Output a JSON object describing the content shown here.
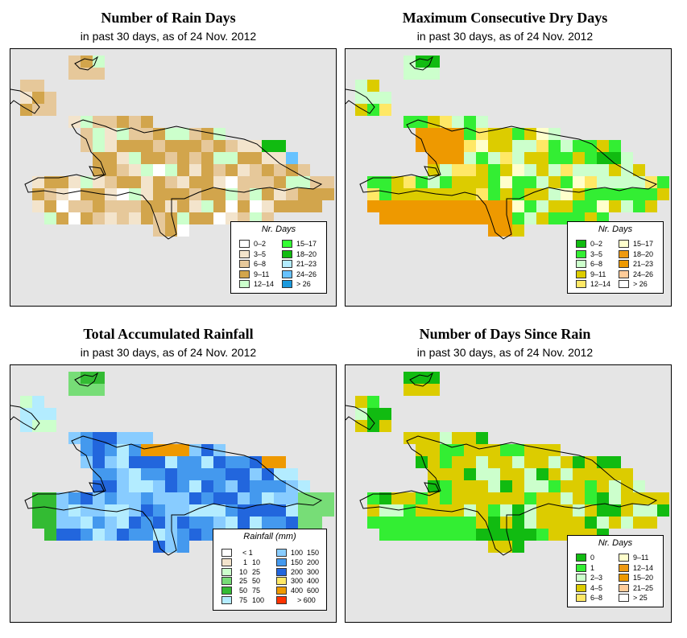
{
  "panels": [
    {
      "id": "rain_days",
      "title": "Number of Rain Days",
      "subtitle": "in past 30 days, as of  24 Nov. 2012",
      "legend": {
        "title": "Nr. Days",
        "items": [
          {
            "label": "0–2",
            "color": "#ffffff"
          },
          {
            "label": "3–5",
            "color": "#f3e4cc"
          },
          {
            "label": "6–8",
            "color": "#e6c89a"
          },
          {
            "label": "9–11",
            "color": "#d2a54c"
          },
          {
            "label": "12–14",
            "color": "#ccffcc"
          },
          {
            "label": "15–17",
            "color": "#33ff33"
          },
          {
            "label": "18–20",
            "color": "#11bb11"
          },
          {
            "label": "21–23",
            "color": "#b3ecff"
          },
          {
            "label": "24–26",
            "color": "#66c2ff"
          },
          {
            "label": "> 26",
            "color": "#1a99dd"
          }
        ]
      }
    },
    {
      "id": "dry_days",
      "title": "Maximum Consecutive Dry Days",
      "subtitle": "in past 30 days, as of  24 Nov. 2012",
      "legend": {
        "title": "Nr. Days",
        "items": [
          {
            "label": "0–2",
            "color": "#11bb11"
          },
          {
            "label": "3–5",
            "color": "#33ee33"
          },
          {
            "label": "6–8",
            "color": "#ccffcc"
          },
          {
            "label": "9–11",
            "color": "#dccc00"
          },
          {
            "label": "12–14",
            "color": "#ffe866"
          },
          {
            "label": "15–17",
            "color": "#ffffcc"
          },
          {
            "label": "18–20",
            "color": "#ee9911"
          },
          {
            "label": "21–23",
            "color": "#ee9900"
          },
          {
            "label": "24–26",
            "color": "#ffcc99"
          },
          {
            "label": "> 26",
            "color": "#ffffff"
          }
        ]
      }
    },
    {
      "id": "rainfall",
      "title": "Total Accumulated Rainfall",
      "subtitle": "in past 30 days, as of  24 Nov. 2012",
      "legend": {
        "title": "Rainfall (mm)",
        "items": [
          {
            "lo": "",
            "hi": "< 1",
            "color": "#ffffff"
          },
          {
            "lo": "1",
            "hi": "10",
            "color": "#f3e4cc"
          },
          {
            "lo": "10",
            "hi": "25",
            "color": "#ccffcc"
          },
          {
            "lo": "25",
            "hi": "50",
            "color": "#77dd77"
          },
          {
            "lo": "50",
            "hi": "75",
            "color": "#33bb33"
          },
          {
            "lo": "75",
            "hi": "100",
            "color": "#b3ecff"
          },
          {
            "lo": "100",
            "hi": "150",
            "color": "#88ccff"
          },
          {
            "lo": "150",
            "hi": "200",
            "color": "#4499ee"
          },
          {
            "lo": "200",
            "hi": "300",
            "color": "#2266dd"
          },
          {
            "lo": "300",
            "hi": "400",
            "color": "#ffe866"
          },
          {
            "lo": "400",
            "hi": "600",
            "color": "#ee9900"
          },
          {
            "lo": "",
            "hi": "> 600",
            "color": "#ff3300"
          }
        ]
      }
    },
    {
      "id": "since_rain",
      "title": "Number of Days Since Rain",
      "subtitle": "in past 30 days, as of  24 Nov. 2012",
      "legend": {
        "title": "Nr. Days",
        "items": [
          {
            "label": "0",
            "color": "#11bb11"
          },
          {
            "label": "1",
            "color": "#33ee33"
          },
          {
            "label": "2–3",
            "color": "#ccffcc"
          },
          {
            "label": "4–5",
            "color": "#dccc00"
          },
          {
            "label": "6–8",
            "color": "#ffe866"
          },
          {
            "label": "9–11",
            "color": "#ffffcc"
          },
          {
            "label": "12–14",
            "color": "#ee9911"
          },
          {
            "label": "15–20",
            "color": "#ee9900"
          },
          {
            "label": "21–25",
            "color": "#ffcc99"
          },
          {
            "label": "> 25",
            "color": "#ffffff"
          }
        ]
      }
    }
  ]
}
